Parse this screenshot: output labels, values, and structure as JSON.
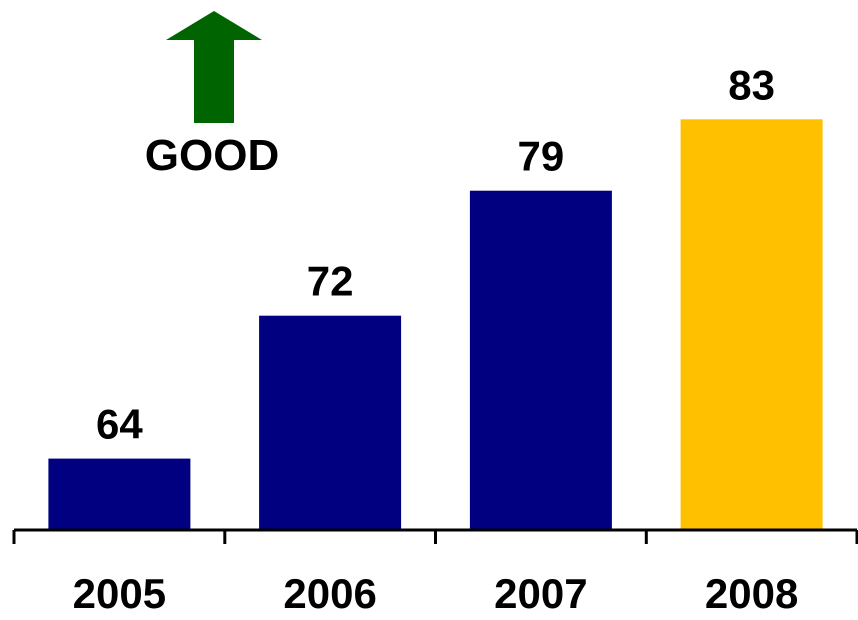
{
  "chart_data": {
    "type": "bar",
    "categories": [
      "2005",
      "2006",
      "2007",
      "2008"
    ],
    "values": [
      64,
      72,
      79,
      83
    ],
    "data_labels": [
      "64",
      "72",
      "79",
      "83"
    ],
    "bar_colors": [
      "#000080",
      "#000080",
      "#000080",
      "#FFC000"
    ],
    "title": "",
    "xlabel": "",
    "ylabel": "",
    "ylim": [
      60,
      88
    ],
    "grid": false,
    "legend": "none",
    "annotation": {
      "text": "GOOD",
      "icon": "up-arrow-icon",
      "color": "#006400"
    }
  }
}
